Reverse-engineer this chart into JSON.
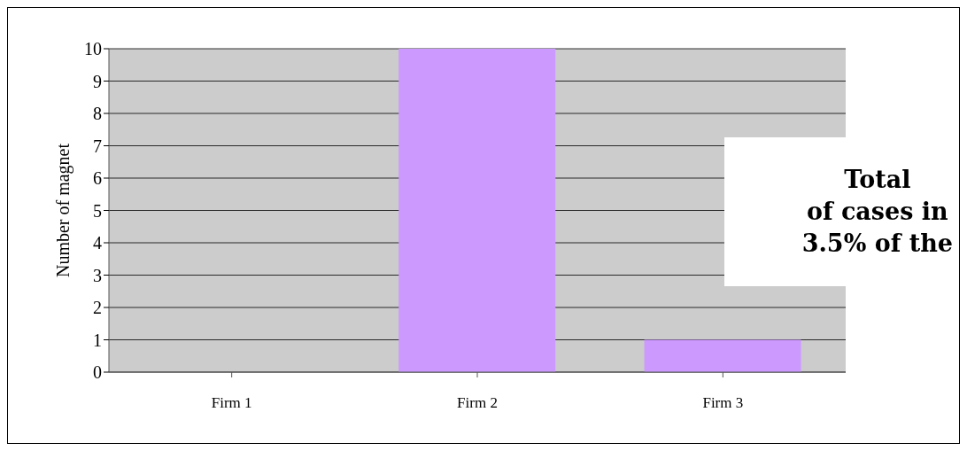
{
  "chart_data": {
    "type": "bar",
    "ylabel": "Number of magnet",
    "categories": [
      "Firm 1",
      "Firm 2",
      "Firm 3"
    ],
    "values": [
      0,
      10,
      1
    ],
    "color": "#cc99ff",
    "ylim": [
      0,
      10
    ],
    "yticks": [
      0,
      1,
      2,
      3,
      4,
      5,
      6,
      7,
      8,
      9,
      10
    ],
    "grid": "y",
    "annotations": [
      "Total\nof cases in\n3.5% of the"
    ]
  }
}
